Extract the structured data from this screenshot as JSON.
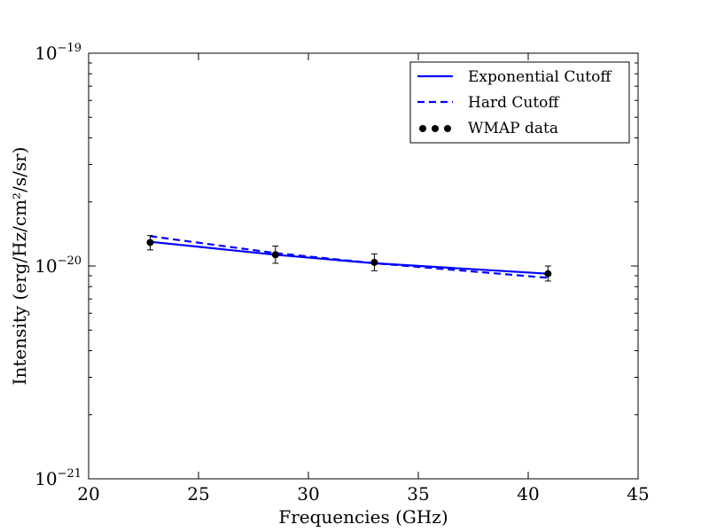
{
  "chart_data": {
    "type": "line",
    "xlabel": "Frequencies (GHz)",
    "ylabel": "Intensity (erg/Hz/cm²/s/sr)",
    "xlim": [
      20,
      45
    ],
    "ylim": [
      1e-21,
      1e-19
    ],
    "yscale": "log",
    "x_ticks": [
      "20",
      "25",
      "30",
      "35",
      "40",
      "45"
    ],
    "x_tick_values": [
      20,
      25,
      30,
      35,
      40,
      45
    ],
    "y_ticks": [
      {
        "value": 1e-19,
        "base": "10",
        "exp": "−19"
      },
      {
        "value": 1e-20,
        "base": "10",
        "exp": "−20"
      },
      {
        "value": 1e-21,
        "base": "10",
        "exp": "−21"
      }
    ],
    "grid": false,
    "legend_position": "top-right",
    "series": [
      {
        "name": "Exponential Cutoff",
        "style": "solid",
        "color": "#0000ff",
        "x": [
          22.8,
          28.5,
          33.0,
          40.9
        ],
        "y": [
          1.3e-20,
          1.13e-20,
          1.03e-20,
          9.2e-21
        ]
      },
      {
        "name": "Hard Cutoff",
        "style": "dashed",
        "color": "#0000ff",
        "x": [
          22.8,
          28.5,
          33.0,
          40.9
        ],
        "y": [
          1.38e-20,
          1.15e-20,
          1.03e-20,
          8.8e-21
        ]
      },
      {
        "name": "WMAP data",
        "style": "points",
        "color": "#000000",
        "x": [
          22.8,
          28.5,
          33.0,
          40.9
        ],
        "y": [
          1.29e-20,
          1.13e-20,
          1.04e-20,
          9.2e-21
        ],
        "err_low": [
          1.19e-20,
          1.03e-20,
          9.5e-21,
          8.5e-21
        ],
        "err_high": [
          1.39e-20,
          1.24e-20,
          1.14e-20,
          1e-20
        ]
      }
    ]
  }
}
